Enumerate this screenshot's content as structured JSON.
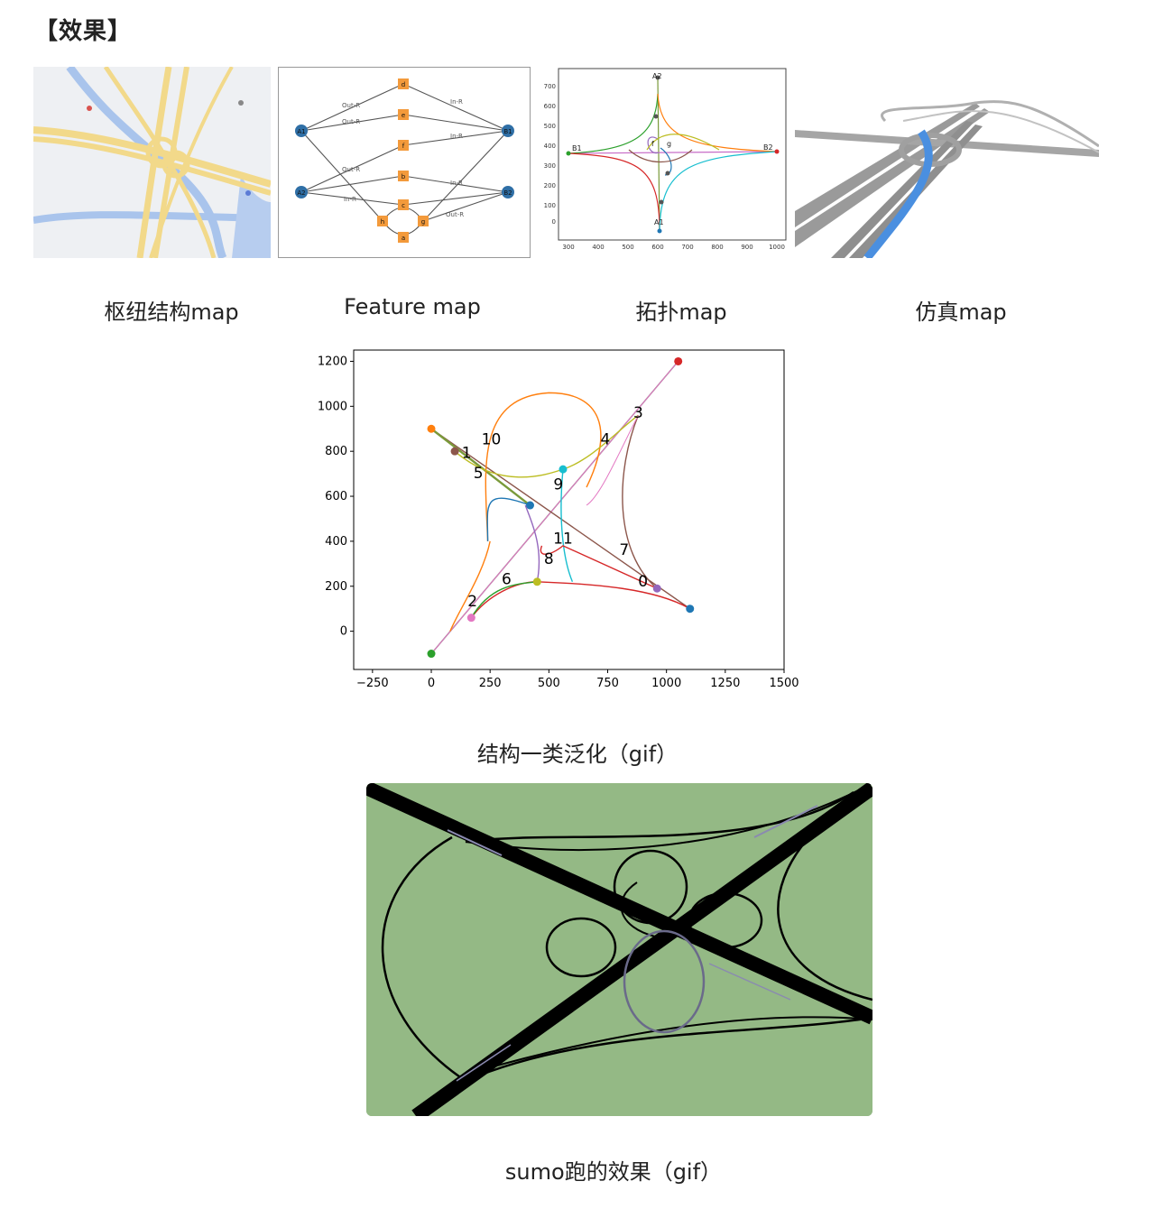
{
  "heading": "【效果】",
  "thumbnails": [
    {
      "caption": "枢纽结构map"
    },
    {
      "caption": "Feature  map"
    },
    {
      "caption": "拓扑map"
    },
    {
      "caption": "仿真map"
    }
  ],
  "feature_map": {
    "nodes": [
      "A1",
      "A2",
      "B1",
      "B2",
      "d",
      "e",
      "f",
      "b",
      "c",
      "h",
      "g",
      "a"
    ],
    "edge_labels": [
      "Out-R",
      "Out-R",
      "In-R",
      "In-R",
      "In-R",
      "Out-R",
      "Out-R",
      "In-R"
    ]
  },
  "topology_map": {
    "node_labels": [
      "A2",
      "A1",
      "B1",
      "B2",
      "f",
      "g"
    ],
    "y_ticks": [
      "700",
      "600",
      "500",
      "400",
      "300",
      "200",
      "100",
      "0"
    ],
    "x_ticks": [
      "300",
      "400",
      "500",
      "600",
      "700",
      "800",
      "900",
      "1000"
    ]
  },
  "generalization_plot": {
    "caption": "结构一类泛化（gif）",
    "y_ticks": [
      "1200",
      "1000",
      "800",
      "600",
      "400",
      "200",
      "0"
    ],
    "x_ticks": [
      "−250",
      "0",
      "250",
      "500",
      "750",
      "1000",
      "1250",
      "1500"
    ],
    "point_labels": [
      "0",
      "1",
      "2",
      "3",
      "4",
      "5",
      "6",
      "7",
      "8",
      "9",
      "10",
      "11"
    ]
  },
  "sumo": {
    "caption": "sumo跑的效果（gif）",
    "background_color": "#94b985"
  },
  "chart_data": {
    "type": "line",
    "title": "",
    "xlabel": "",
    "ylabel": "",
    "xlim": [
      -330,
      1500
    ],
    "ylim": [
      -170,
      1250
    ],
    "grid": false,
    "points": [
      {
        "label": "0",
        "x": 900,
        "y": 200
      },
      {
        "label": "1",
        "x": 150,
        "y": 770
      },
      {
        "label": "2",
        "x": 175,
        "y": 110
      },
      {
        "label": "3",
        "x": 880,
        "y": 950
      },
      {
        "label": "4",
        "x": 740,
        "y": 830
      },
      {
        "label": "5",
        "x": 200,
        "y": 680
      },
      {
        "label": "6",
        "x": 320,
        "y": 210
      },
      {
        "label": "7",
        "x": 820,
        "y": 340
      },
      {
        "label": "8",
        "x": 500,
        "y": 300
      },
      {
        "label": "9",
        "x": 540,
        "y": 630
      },
      {
        "label": "10",
        "x": 255,
        "y": 830
      },
      {
        "label": "11",
        "x": 560,
        "y": 390
      }
    ],
    "endpoints": [
      {
        "x": 1050,
        "y": 1200,
        "color": "#d62728"
      },
      {
        "x": 0,
        "y": 900,
        "color": "#ff7f0e"
      },
      {
        "x": 0,
        "y": -100,
        "color": "#2ca02c"
      },
      {
        "x": 1100,
        "y": 100,
        "color": "#1f77b4"
      },
      {
        "x": 100,
        "y": 800,
        "color": "#8c564b"
      },
      {
        "x": 560,
        "y": 720,
        "color": "#17becf"
      },
      {
        "x": 420,
        "y": 560,
        "color": "#1f77b4"
      },
      {
        "x": 450,
        "y": 220,
        "color": "#bcbd22"
      },
      {
        "x": 170,
        "y": 60,
        "color": "#e377c2"
      },
      {
        "x": 960,
        "y": 190,
        "color": "#9467bd"
      }
    ]
  }
}
